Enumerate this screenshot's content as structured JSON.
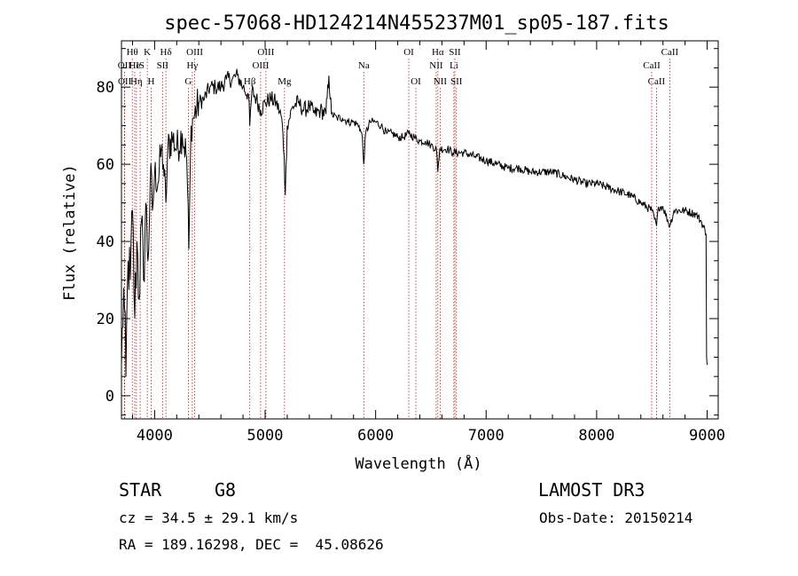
{
  "chart_data": {
    "type": "line",
    "title": "spec-57068-HD124214N455237M01_sp05-187.fits",
    "xlabel": "Wavelength (Å)",
    "ylabel": "Flux (relative)",
    "xlim": [
      3700,
      9100
    ],
    "ylim": [
      -6,
      92
    ],
    "xticks": [
      4000,
      5000,
      6000,
      7000,
      8000,
      9000
    ],
    "yticks": [
      0,
      20,
      40,
      60,
      80
    ],
    "line_color": "#000000",
    "marker_color": "#b22222",
    "spectrum_anchors": [
      [
        3700,
        8
      ],
      [
        3720,
        28
      ],
      [
        3740,
        5
      ],
      [
        3760,
        35
      ],
      [
        3780,
        30
      ],
      [
        3800,
        48
      ],
      [
        3820,
        20
      ],
      [
        3840,
        40
      ],
      [
        3860,
        25
      ],
      [
        3880,
        45
      ],
      [
        3900,
        30
      ],
      [
        3920,
        50
      ],
      [
        3940,
        35
      ],
      [
        3960,
        55
      ],
      [
        3980,
        48
      ],
      [
        4000,
        58
      ],
      [
        4030,
        55
      ],
      [
        4060,
        64
      ],
      [
        4080,
        60
      ],
      [
        4102,
        50
      ],
      [
        4120,
        64
      ],
      [
        4160,
        67
      ],
      [
        4200,
        64
      ],
      [
        4250,
        68
      ],
      [
        4290,
        62
      ],
      [
        4310,
        38
      ],
      [
        4330,
        70
      ],
      [
        4350,
        72
      ],
      [
        4400,
        76
      ],
      [
        4450,
        77
      ],
      [
        4500,
        80
      ],
      [
        4550,
        80
      ],
      [
        4600,
        80
      ],
      [
        4650,
        82
      ],
      [
        4700,
        82
      ],
      [
        4750,
        83
      ],
      [
        4800,
        80
      ],
      [
        4850,
        78
      ],
      [
        4861,
        70
      ],
      [
        4880,
        79
      ],
      [
        4920,
        77
      ],
      [
        4960,
        74
      ],
      [
        5000,
        76
      ],
      [
        5050,
        77
      ],
      [
        5100,
        76
      ],
      [
        5150,
        72
      ],
      [
        5172,
        62
      ],
      [
        5183,
        52
      ],
      [
        5200,
        70
      ],
      [
        5250,
        75
      ],
      [
        5300,
        76
      ],
      [
        5350,
        74
      ],
      [
        5400,
        75
      ],
      [
        5450,
        73
      ],
      [
        5500,
        74
      ],
      [
        5550,
        73
      ],
      [
        5577,
        83
      ],
      [
        5600,
        73
      ],
      [
        5650,
        72
      ],
      [
        5700,
        72
      ],
      [
        5750,
        71
      ],
      [
        5800,
        71
      ],
      [
        5850,
        70
      ],
      [
        5880,
        67
      ],
      [
        5892,
        60
      ],
      [
        5910,
        68
      ],
      [
        5950,
        71
      ],
      [
        6000,
        71
      ],
      [
        6050,
        70
      ],
      [
        6100,
        68
      ],
      [
        6150,
        68
      ],
      [
        6200,
        67
      ],
      [
        6250,
        67
      ],
      [
        6300,
        68
      ],
      [
        6350,
        67
      ],
      [
        6400,
        66
      ],
      [
        6450,
        66
      ],
      [
        6500,
        65
      ],
      [
        6550,
        64
      ],
      [
        6563,
        58
      ],
      [
        6580,
        64
      ],
      [
        6650,
        64
      ],
      [
        6700,
        63
      ],
      [
        6800,
        63
      ],
      [
        6900,
        62
      ],
      [
        7000,
        61
      ],
      [
        7100,
        60
      ],
      [
        7200,
        59
      ],
      [
        7300,
        59
      ],
      [
        7400,
        58
      ],
      [
        7500,
        58
      ],
      [
        7600,
        58
      ],
      [
        7700,
        57
      ],
      [
        7800,
        56
      ],
      [
        7900,
        55
      ],
      [
        8000,
        55
      ],
      [
        8100,
        54
      ],
      [
        8200,
        53
      ],
      [
        8300,
        52
      ],
      [
        8400,
        50
      ],
      [
        8500,
        48
      ],
      [
        8542,
        44
      ],
      [
        8560,
        49
      ],
      [
        8600,
        49
      ],
      [
        8662,
        44
      ],
      [
        8700,
        48
      ],
      [
        8800,
        48
      ],
      [
        8900,
        47
      ],
      [
        8950,
        45
      ],
      [
        8990,
        42
      ],
      [
        8995,
        10
      ],
      [
        9000,
        8
      ]
    ],
    "spectral_lines": [
      {
        "label": "Hθ",
        "wavelength": 3798,
        "row": 1
      },
      {
        "label": "OII",
        "wavelength": 3727,
        "row": 2
      },
      {
        "label": "OII",
        "wavelength": 3729,
        "row": 3
      },
      {
        "label": "He",
        "wavelength": 3820,
        "row": 2
      },
      {
        "label": "Hη",
        "wavelength": 3835,
        "row": 3
      },
      {
        "label": "K",
        "wavelength": 3934,
        "row": 1
      },
      {
        "label": "IS",
        "wavelength": 3869,
        "row": 2
      },
      {
        "label": "H",
        "wavelength": 3969,
        "row": 3
      },
      {
        "label": "Hδ",
        "wavelength": 4102,
        "row": 1
      },
      {
        "label": "SII",
        "wavelength": 4072,
        "row": 2
      },
      {
        "label": "OIII",
        "wavelength": 4363,
        "row": 1
      },
      {
        "label": "Hγ",
        "wavelength": 4341,
        "row": 2
      },
      {
        "label": "G",
        "wavelength": 4305,
        "row": 3
      },
      {
        "label": "Hβ",
        "wavelength": 4861,
        "row": 3
      },
      {
        "label": "OIII",
        "wavelength": 5007,
        "row": 1
      },
      {
        "label": "OIII",
        "wavelength": 4959,
        "row": 2
      },
      {
        "label": "Mg",
        "wavelength": 5175,
        "row": 3
      },
      {
        "label": "Na",
        "wavelength": 5893,
        "row": 2
      },
      {
        "label": "OI",
        "wavelength": 6300,
        "row": 1
      },
      {
        "label": "OI",
        "wavelength": 6364,
        "row": 3
      },
      {
        "label": "Hα",
        "wavelength": 6563,
        "row": 1
      },
      {
        "label": "NII",
        "wavelength": 6548,
        "row": 2
      },
      {
        "label": "NII",
        "wavelength": 6584,
        "row": 3
      },
      {
        "label": "SII",
        "wavelength": 6717,
        "row": 1
      },
      {
        "label": "Li",
        "wavelength": 6708,
        "row": 2
      },
      {
        "label": "SII",
        "wavelength": 6731,
        "row": 3
      },
      {
        "label": "CaII",
        "wavelength": 8662,
        "row": 1
      },
      {
        "label": "CaII",
        "wavelength": 8498,
        "row": 2
      },
      {
        "label": "CaII",
        "wavelength": 8542,
        "row": 3
      }
    ]
  },
  "info": {
    "class": "STAR",
    "subclass": "G8",
    "survey": "LAMOST DR3",
    "cz": "cz = 34.5 ± 29.1 km/s",
    "obs_date": "Obs-Date: 20150214",
    "coords": "RA = 189.16298, DEC =  45.08626"
  }
}
